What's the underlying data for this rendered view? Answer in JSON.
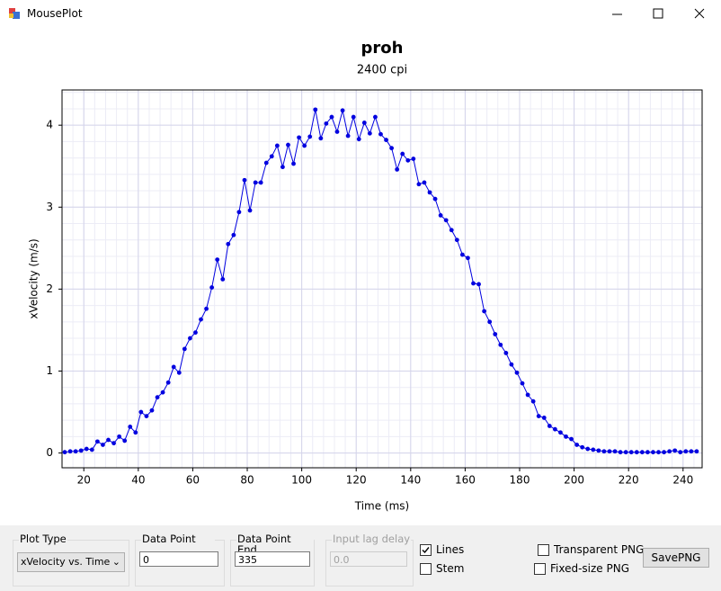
{
  "window": {
    "title": "MousePlot"
  },
  "chart_data": {
    "type": "line",
    "title": "proh",
    "subtitle": "2400 cpi",
    "x_label": "Time (ms)",
    "y_label": "xVelocity (m/s)",
    "xlim": [
      12,
      247
    ],
    "ylim": [
      -0.18,
      4.43
    ],
    "xticks": [
      20,
      40,
      60,
      80,
      100,
      120,
      140,
      160,
      180,
      200,
      220,
      240
    ],
    "yticks": [
      0,
      1,
      2,
      3,
      4
    ],
    "grid": true,
    "series": [
      {
        "color": "#0000e0",
        "x": [
          13,
          15,
          17,
          19,
          21,
          23,
          25,
          27,
          29,
          31,
          33,
          35,
          37,
          39,
          41,
          43,
          45,
          47,
          49,
          51,
          53,
          55,
          57,
          59,
          61,
          63,
          65,
          67,
          69,
          71,
          73,
          75,
          77,
          79,
          81,
          83,
          85,
          87,
          89,
          91,
          93,
          95,
          97,
          99,
          101,
          103,
          105,
          107,
          109,
          111,
          113,
          115,
          117,
          119,
          121,
          123,
          125,
          127,
          129,
          131,
          133,
          135,
          137,
          139,
          141,
          143,
          145,
          147,
          149,
          151,
          153,
          155,
          157,
          159,
          161,
          163,
          165,
          167,
          169,
          171,
          173,
          175,
          177,
          179,
          181,
          183,
          185,
          187,
          189,
          191,
          193,
          195,
          197,
          199,
          201,
          203,
          205,
          207,
          209,
          211,
          213,
          215,
          217,
          219,
          221,
          223,
          225,
          227,
          229,
          231,
          233,
          235,
          237,
          239,
          241,
          243,
          245
        ],
        "values": [
          0.01,
          0.02,
          0.02,
          0.03,
          0.05,
          0.04,
          0.14,
          0.1,
          0.16,
          0.12,
          0.2,
          0.15,
          0.32,
          0.25,
          0.5,
          0.45,
          0.52,
          0.68,
          0.74,
          0.86,
          1.05,
          0.98,
          1.27,
          1.4,
          1.47,
          1.63,
          1.76,
          2.02,
          2.36,
          2.12,
          2.55,
          2.66,
          2.94,
          3.33,
          2.96,
          3.3,
          3.3,
          3.54,
          3.62,
          3.75,
          3.49,
          3.76,
          3.53,
          3.85,
          3.75,
          3.86,
          4.19,
          3.84,
          4.02,
          4.1,
          3.92,
          4.18,
          3.87,
          4.1,
          3.83,
          4.03,
          3.9,
          4.1,
          3.89,
          3.82,
          3.72,
          3.46,
          3.65,
          3.57,
          3.59,
          3.28,
          3.3,
          3.18,
          3.1,
          2.9,
          2.84,
          2.72,
          2.6,
          2.42,
          2.38,
          2.07,
          2.06,
          1.73,
          1.6,
          1.45,
          1.32,
          1.22,
          1.08,
          0.98,
          0.85,
          0.71,
          0.63,
          0.45,
          0.43,
          0.33,
          0.29,
          0.25,
          0.2,
          0.17,
          0.1,
          0.07,
          0.05,
          0.04,
          0.03,
          0.02,
          0.02,
          0.02,
          0.01,
          0.01,
          0.01,
          0.01,
          0.01,
          0.01,
          0.01,
          0.01,
          0.01,
          0.02,
          0.03,
          0.01,
          0.02,
          0.02,
          0.02
        ]
      }
    ]
  },
  "controls": {
    "plot_type_label": "Plot Type",
    "plot_type_value": "xVelocity vs. Time",
    "start_label": "Data Point Start",
    "start_value": "0",
    "end_label": "Data Point End",
    "end_value": "335",
    "lag_label": "Input lag delay",
    "lag_value": "0.0",
    "lines_label": "Lines",
    "lines_checked": true,
    "stem_label": "Stem",
    "stem_checked": false,
    "transparent_label": "Transparent PNG",
    "transparent_checked": false,
    "fixed_label": "Fixed-size PNG",
    "fixed_checked": false,
    "save_label": "SavePNG"
  }
}
